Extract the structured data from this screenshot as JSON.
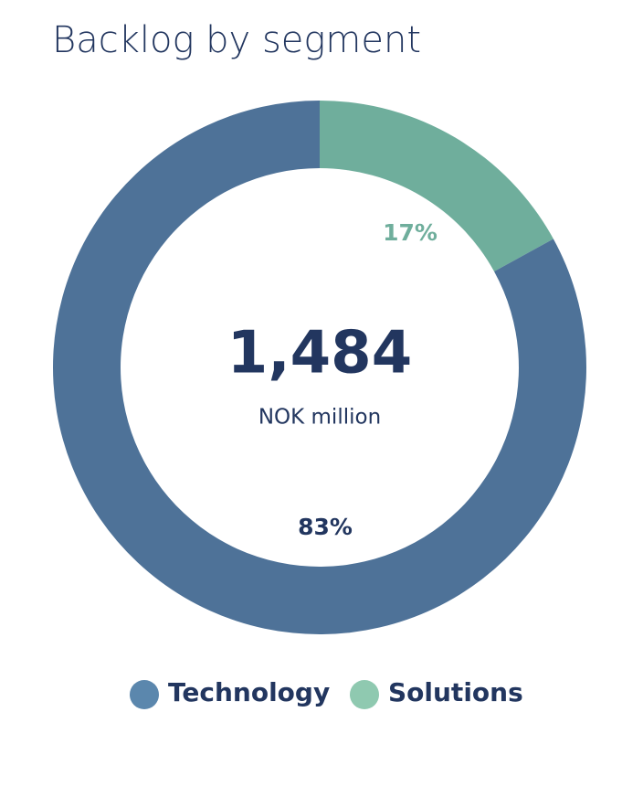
{
  "chart_data": {
    "type": "donut",
    "title": "Backlog by segment",
    "center_value": "1,484",
    "center_unit": "NOK million",
    "categories": [
      "Technology",
      "Solutions"
    ],
    "values": [
      83,
      17
    ],
    "value_labels": [
      "83%",
      "17%"
    ],
    "colors": [
      "#4e7298",
      "#6fae9c"
    ],
    "label_colors": [
      "#22365f",
      "#6fae9c"
    ],
    "legend_colors": [
      "#5b87ad",
      "#8fc9b0"
    ]
  }
}
